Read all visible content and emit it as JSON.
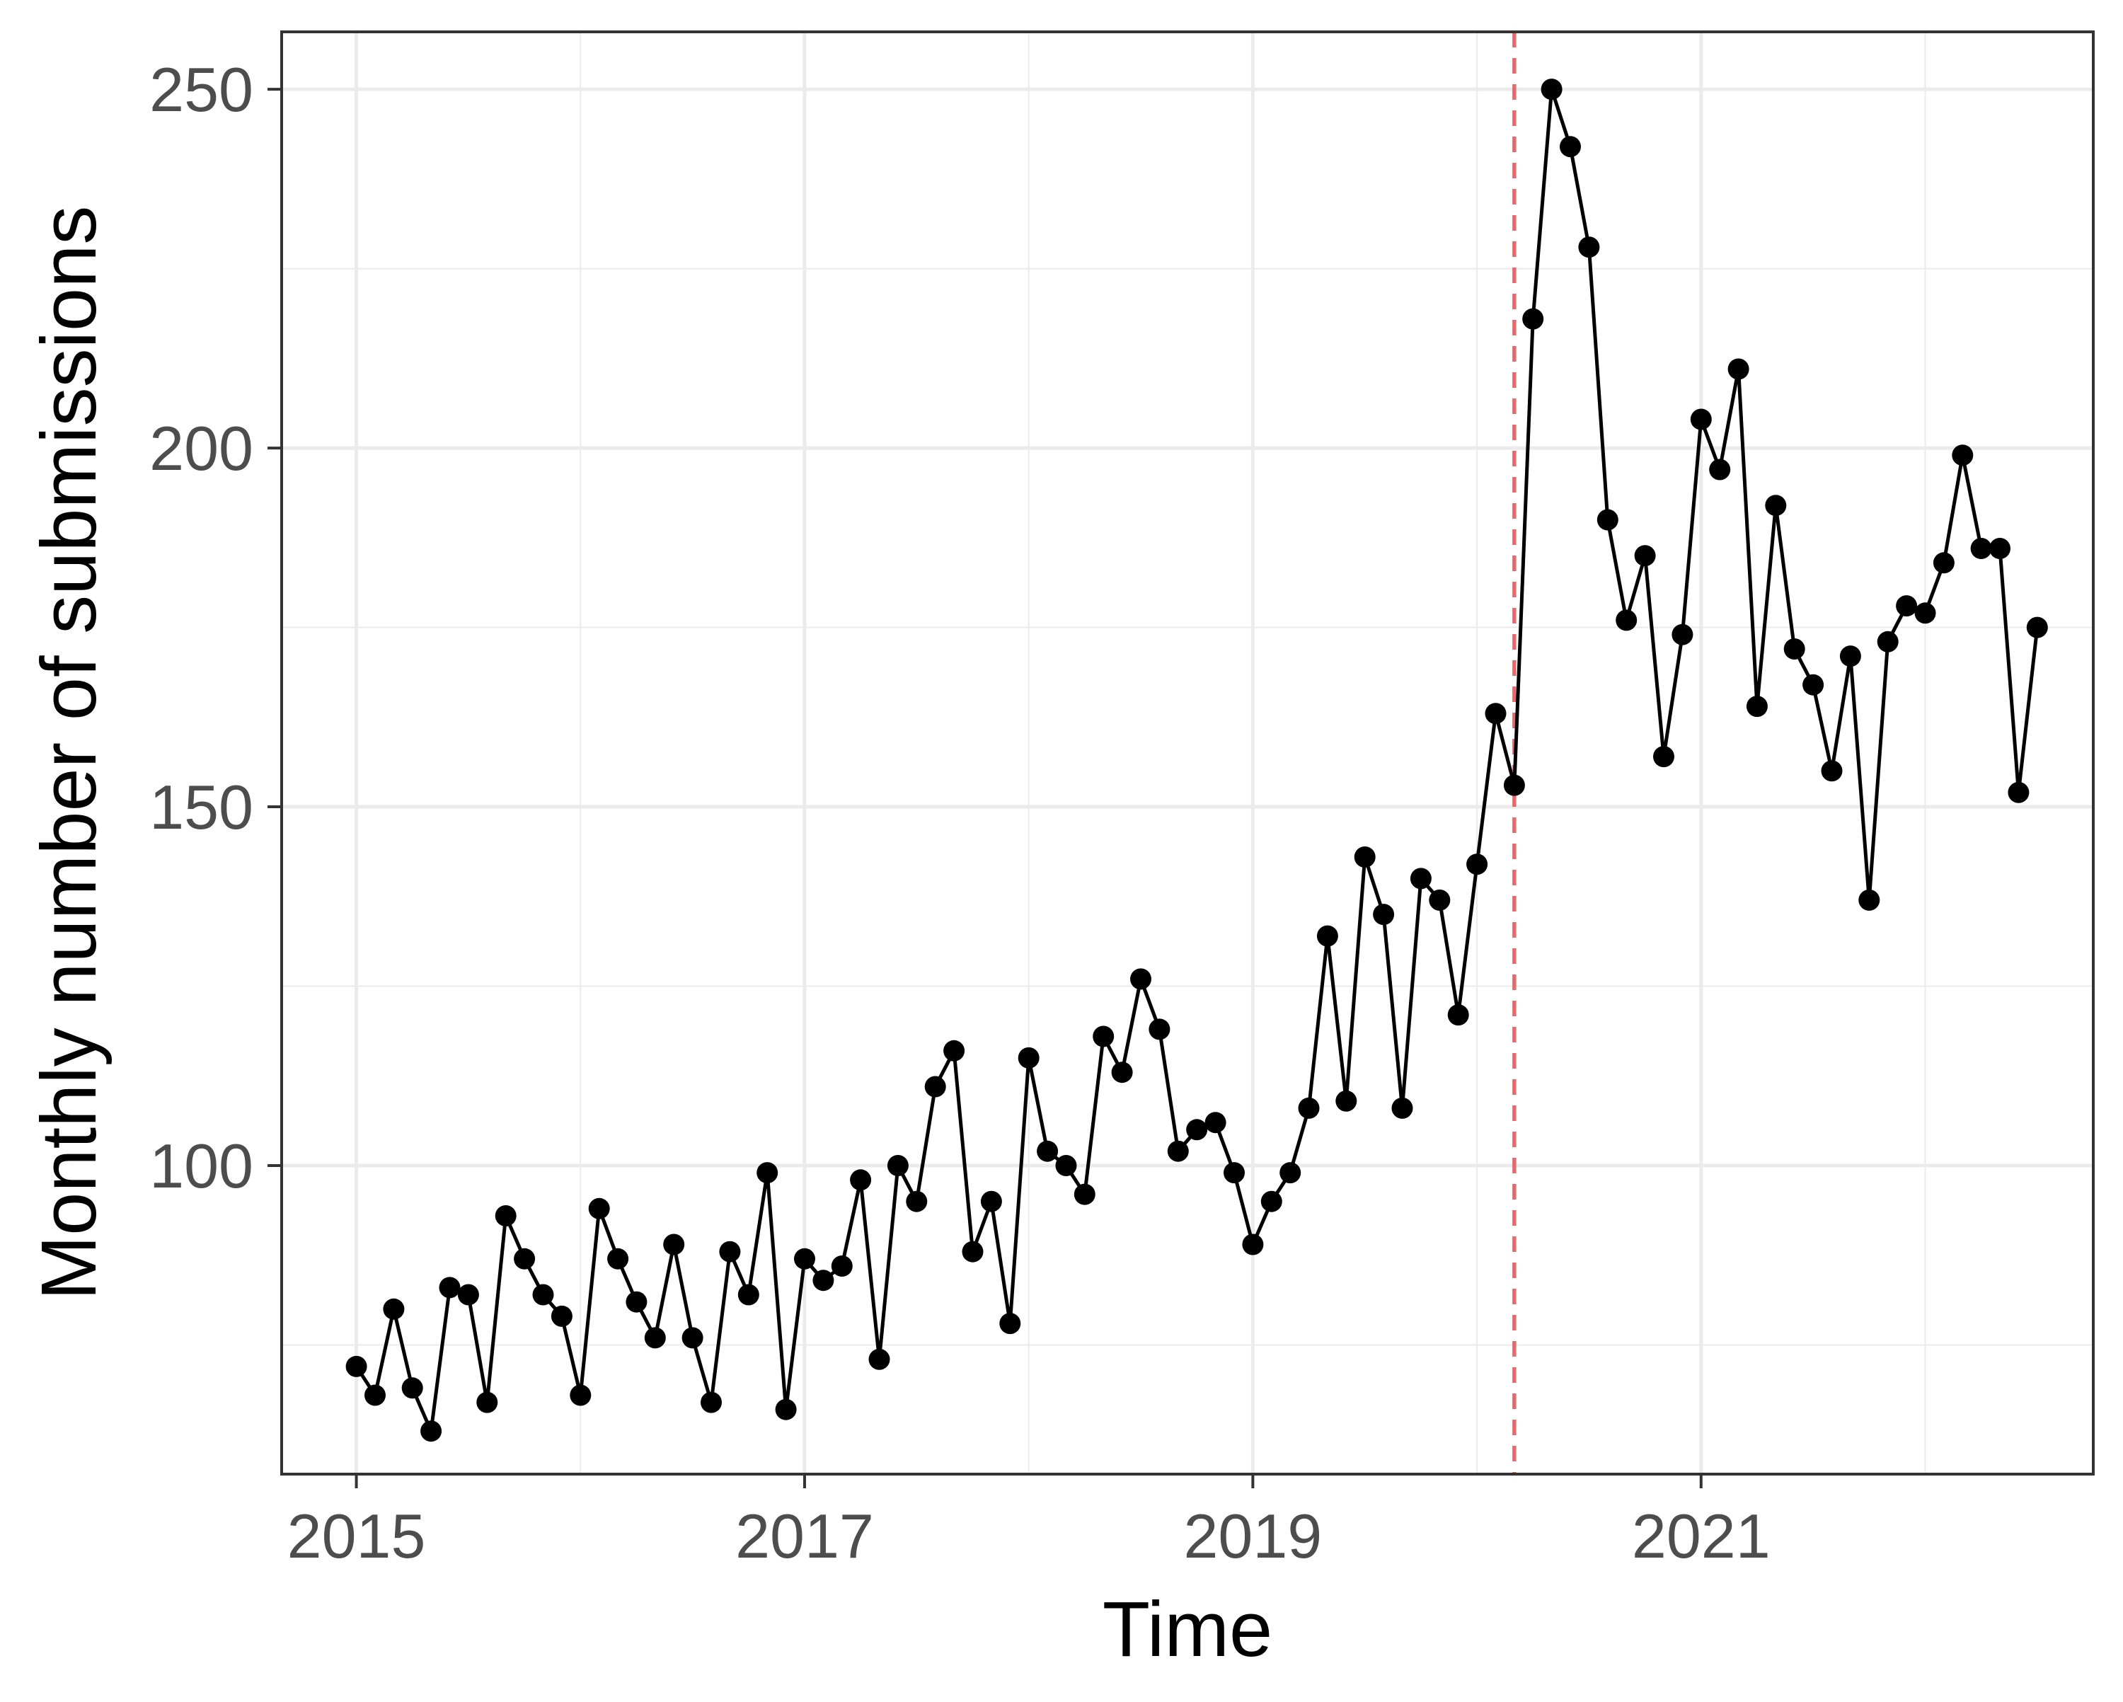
{
  "chart_data": {
    "type": "line",
    "title": "",
    "xlabel": "Time",
    "ylabel": "Monthly number of submissions",
    "x_axis": {
      "kind": "date",
      "range": [
        "2014-09",
        "2022-10"
      ],
      "ticks": [
        "2015",
        "2017",
        "2019",
        "2021"
      ]
    },
    "y_axis": {
      "range": [
        57,
        258
      ],
      "ticks": [
        100,
        150,
        200,
        250
      ]
    },
    "grid": true,
    "legend": "none",
    "colors": {
      "line": "#000000",
      "points": "#000000",
      "reference_line": "#e8696b",
      "grid": "#ebebeb",
      "panel_border": "#333333",
      "tick_label": "#4d4d4d"
    },
    "reference_line": {
      "orientation": "vertical",
      "x": "2020-03",
      "style": "dashed"
    },
    "series": [
      {
        "x": [
          "2015-01",
          "2015-02",
          "2015-03",
          "2015-04",
          "2015-05",
          "2015-06",
          "2015-07",
          "2015-08",
          "2015-09",
          "2015-10",
          "2015-11",
          "2015-12",
          "2016-01",
          "2016-02",
          "2016-03",
          "2016-04",
          "2016-05",
          "2016-06",
          "2016-07",
          "2016-08",
          "2016-09",
          "2016-10",
          "2016-11",
          "2016-12",
          "2017-01",
          "2017-02",
          "2017-03",
          "2017-04",
          "2017-05",
          "2017-06",
          "2017-07",
          "2017-08",
          "2017-09",
          "2017-10",
          "2017-11",
          "2017-12",
          "2018-01",
          "2018-02",
          "2018-03",
          "2018-04",
          "2018-05",
          "2018-06",
          "2018-07",
          "2018-08",
          "2018-09",
          "2018-10",
          "2018-11",
          "2018-12",
          "2019-01",
          "2019-02",
          "2019-03",
          "2019-04",
          "2019-05",
          "2019-06",
          "2019-07",
          "2019-08",
          "2019-09",
          "2019-10",
          "2019-11",
          "2019-12",
          "2020-01",
          "2020-02",
          "2020-03",
          "2020-04",
          "2020-05",
          "2020-06",
          "2020-07",
          "2020-08",
          "2020-09",
          "2020-10",
          "2020-11",
          "2020-12",
          "2021-01",
          "2021-02",
          "2021-03",
          "2021-04",
          "2021-05",
          "2021-06",
          "2021-07",
          "2021-08",
          "2021-09",
          "2021-10",
          "2021-11",
          "2021-12",
          "2022-01",
          "2022-02",
          "2022-03",
          "2022-04",
          "2022-05",
          "2022-06",
          "2022-07"
        ],
        "values": [
          72,
          68,
          80,
          69,
          63,
          83,
          82,
          67,
          93,
          87,
          82,
          79,
          68,
          94,
          87,
          81,
          76,
          89,
          76,
          67,
          88,
          82,
          99,
          66,
          87,
          84,
          86,
          98,
          73,
          100,
          95,
          111,
          116,
          88,
          95,
          78,
          115,
          102,
          100,
          96,
          118,
          113,
          126,
          119,
          102,
          105,
          106,
          99,
          89,
          95,
          99,
          108,
          132,
          109,
          143,
          135,
          108,
          140,
          137,
          121,
          142,
          163,
          153,
          218,
          250,
          242,
          228,
          190,
          176,
          185,
          157,
          174,
          204,
          197,
          211,
          164,
          192,
          172,
          167,
          155,
          171,
          137,
          173,
          178,
          177,
          184,
          199,
          186,
          186,
          152,
          175
        ]
      }
    ]
  }
}
